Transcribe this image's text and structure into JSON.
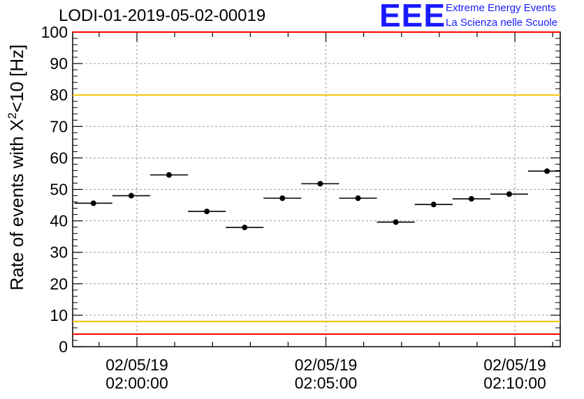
{
  "title": "LODI-01-2019-05-02-00019",
  "logo": {
    "mark": "EEE",
    "line1": "Extreme Energy Events",
    "line2": "La Scienza nelle Scuole",
    "color": "#1a1aff"
  },
  "chart_data": {
    "type": "scatter",
    "title": "LODI-01-2019-05-02-00019",
    "ylabel": "Rate of events with X²<10 [Hz]",
    "ylabel_parts": {
      "base": "Rate of events with X",
      "sup": "2",
      "rest": "<10 [Hz]"
    },
    "ylim": [
      0,
      100
    ],
    "yticks": [
      0,
      10,
      20,
      30,
      40,
      50,
      60,
      70,
      80,
      90,
      100
    ],
    "xlim_minutes": [
      -1.7,
      11.2
    ],
    "xticks": [
      {
        "minutes": 0,
        "date": "02/05/19",
        "time": "02:00:00"
      },
      {
        "minutes": 5,
        "date": "02/05/19",
        "time": "02:05:00"
      },
      {
        "minutes": 10,
        "date": "02/05/19",
        "time": "02:10:00"
      }
    ],
    "grid": true,
    "bin_width_minutes": 1,
    "points": [
      {
        "minutes": -1.15,
        "value": 45.6
      },
      {
        "minutes": -0.15,
        "value": 48.0
      },
      {
        "minutes": 0.85,
        "value": 54.6
      },
      {
        "minutes": 1.85,
        "value": 43.0
      },
      {
        "minutes": 2.85,
        "value": 37.9
      },
      {
        "minutes": 3.85,
        "value": 47.2
      },
      {
        "minutes": 4.85,
        "value": 51.8
      },
      {
        "minutes": 5.85,
        "value": 47.2
      },
      {
        "minutes": 6.85,
        "value": 39.6
      },
      {
        "minutes": 7.85,
        "value": 45.2
      },
      {
        "minutes": 8.85,
        "value": 47.0
      },
      {
        "minutes": 9.85,
        "value": 48.5
      },
      {
        "minutes": 10.85,
        "value": 55.8
      }
    ],
    "reference_lines": [
      {
        "value": 80,
        "color": "#f2c200"
      },
      {
        "value": 8,
        "color": "#f2c200"
      },
      {
        "value": 4,
        "color": "#ff0000"
      },
      {
        "value": 100,
        "color": "#ff0000"
      }
    ]
  }
}
